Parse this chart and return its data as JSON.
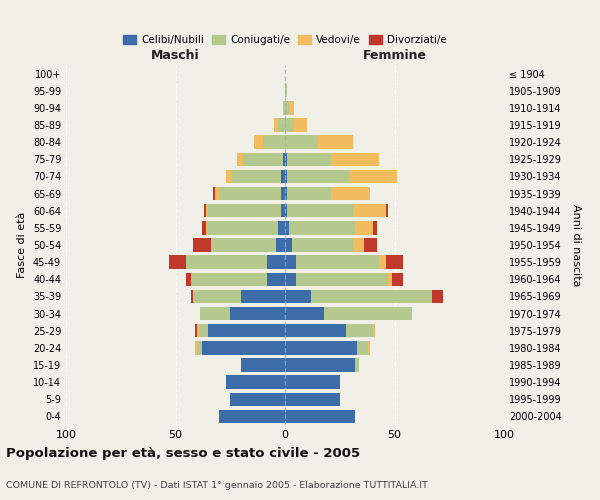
{
  "age_groups": [
    "100+",
    "95-99",
    "90-94",
    "85-89",
    "80-84",
    "75-79",
    "70-74",
    "65-69",
    "60-64",
    "55-59",
    "50-54",
    "45-49",
    "40-44",
    "35-39",
    "30-34",
    "25-29",
    "20-24",
    "15-19",
    "10-14",
    "5-9",
    "0-4"
  ],
  "birth_years": [
    "≤ 1904",
    "1905-1909",
    "1910-1914",
    "1915-1919",
    "1920-1924",
    "1925-1929",
    "1930-1934",
    "1935-1939",
    "1940-1944",
    "1945-1949",
    "1950-1954",
    "1955-1959",
    "1960-1964",
    "1965-1969",
    "1970-1974",
    "1975-1979",
    "1980-1984",
    "1985-1989",
    "1990-1994",
    "1995-1999",
    "2000-2004"
  ],
  "colors": {
    "celibe": "#3d6da8",
    "coniugato": "#b5c98e",
    "vedovo": "#f0bc5e",
    "divorziato": "#c0392b"
  },
  "m_cel": [
    0,
    0,
    0,
    0,
    0,
    1,
    2,
    2,
    2,
    3,
    4,
    8,
    8,
    20,
    25,
    35,
    38,
    20,
    27,
    25,
    30
  ],
  "m_con": [
    0,
    0,
    1,
    3,
    10,
    18,
    22,
    28,
    33,
    32,
    30,
    37,
    35,
    22,
    14,
    4,
    2,
    0,
    0,
    0,
    0
  ],
  "m_ved": [
    0,
    0,
    0,
    2,
    4,
    3,
    3,
    2,
    1,
    1,
    0,
    0,
    0,
    0,
    0,
    1,
    1,
    0,
    0,
    0,
    0
  ],
  "m_div": [
    0,
    0,
    0,
    0,
    0,
    0,
    0,
    1,
    1,
    2,
    8,
    8,
    2,
    1,
    0,
    1,
    0,
    0,
    0,
    0,
    0
  ],
  "f_nub": [
    0,
    0,
    0,
    0,
    0,
    1,
    1,
    1,
    1,
    2,
    3,
    5,
    5,
    12,
    18,
    28,
    33,
    32,
    25,
    25,
    32
  ],
  "f_con": [
    0,
    1,
    2,
    4,
    15,
    20,
    28,
    20,
    30,
    30,
    28,
    38,
    42,
    55,
    40,
    12,
    5,
    2,
    0,
    0,
    0
  ],
  "f_ved": [
    0,
    0,
    2,
    6,
    16,
    22,
    22,
    18,
    15,
    8,
    5,
    3,
    2,
    0,
    0,
    1,
    1,
    0,
    0,
    0,
    0
  ],
  "f_div": [
    0,
    0,
    0,
    0,
    0,
    0,
    0,
    0,
    1,
    2,
    6,
    8,
    5,
    5,
    0,
    0,
    0,
    0,
    0,
    0,
    0
  ],
  "xlim": [
    -100,
    100
  ],
  "title": "Popolazione per età, sesso e stato civile - 2005",
  "subtitle": "COMUNE DI REFRONTOLO (TV) - Dati ISTAT 1° gennaio 2005 - Elaborazione TUTTITALIA.IT",
  "ylabel_left": "Fasce di età",
  "ylabel_right": "Anni di nascita",
  "xlabel_maschi": "Maschi",
  "xlabel_femmine": "Femmine",
  "bg_color": "#f0efe8"
}
